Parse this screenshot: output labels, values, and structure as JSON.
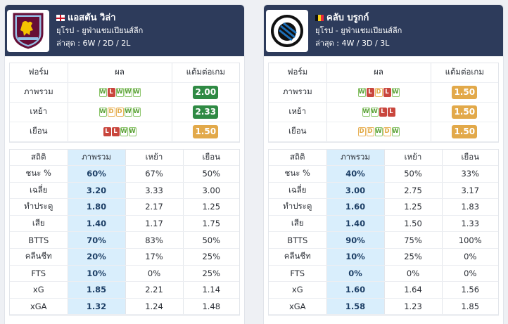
{
  "headers": {
    "form": "ฟอร์ม",
    "result": "ผล",
    "ppg": "แต้มต่อเกม",
    "stat": "สถิติ",
    "overall": "ภาพรวม",
    "home": "เหย้า",
    "away": "เยือน"
  },
  "teams": [
    {
      "name": "แอสตัน วิล่า",
      "flag": "england",
      "competition": "ยุโรป - ยูฟ่าแชมเปียนส์ลีก",
      "recent": "ล่าสุด : 6W / 2D / 2L",
      "form_rows": [
        {
          "label": "ภาพรวม",
          "results": [
            "W",
            "L",
            "W",
            "W",
            "W"
          ],
          "ppg": "2.00",
          "ppg_color": "green"
        },
        {
          "label": "เหย้า",
          "results": [
            "W",
            "D",
            "D",
            "W",
            "W"
          ],
          "ppg": "2.33",
          "ppg_color": "green"
        },
        {
          "label": "เยือน",
          "results": [
            "L",
            "L",
            "W",
            "W"
          ],
          "ppg": "1.50",
          "ppg_color": "orange"
        }
      ],
      "stats": [
        {
          "label": "ชนะ %",
          "overall": "60%",
          "home": "67%",
          "away": "50%"
        },
        {
          "label": "เฉลี่ย",
          "overall": "3.20",
          "home": "3.33",
          "away": "3.00"
        },
        {
          "label": "ทำประตู",
          "overall": "1.80",
          "home": "2.17",
          "away": "1.25"
        },
        {
          "label": "เสีย",
          "overall": "1.40",
          "home": "1.17",
          "away": "1.75"
        },
        {
          "label": "BTTS",
          "overall": "70%",
          "home": "83%",
          "away": "50%"
        },
        {
          "label": "คลีนชีท",
          "overall": "20%",
          "home": "17%",
          "away": "25%"
        },
        {
          "label": "FTS",
          "overall": "10%",
          "home": "0%",
          "away": "25%"
        },
        {
          "label": "xG",
          "overall": "1.85",
          "home": "2.21",
          "away": "1.14"
        },
        {
          "label": "xGA",
          "overall": "1.32",
          "home": "1.24",
          "away": "1.48"
        }
      ]
    },
    {
      "name": "คลับ บรูกก์",
      "flag": "belgium",
      "competition": "ยุโรป - ยูฟ่าแชมเปียนส์ลีก",
      "recent": "ล่าสุด : 4W / 3D / 3L",
      "form_rows": [
        {
          "label": "ภาพรวม",
          "results": [
            "W",
            "L",
            "D",
            "L",
            "W"
          ],
          "ppg": "1.50",
          "ppg_color": "orange"
        },
        {
          "label": "เหย้า",
          "results": [
            "W",
            "W",
            "L",
            "L"
          ],
          "ppg": "1.50",
          "ppg_color": "orange"
        },
        {
          "label": "เยือน",
          "results": [
            "D",
            "D",
            "W",
            "D",
            "W"
          ],
          "ppg": "1.50",
          "ppg_color": "orange"
        }
      ],
      "stats": [
        {
          "label": "ชนะ %",
          "overall": "40%",
          "home": "50%",
          "away": "33%"
        },
        {
          "label": "เฉลี่ย",
          "overall": "3.00",
          "home": "2.75",
          "away": "3.17"
        },
        {
          "label": "ทำประตู",
          "overall": "1.60",
          "home": "1.25",
          "away": "1.83"
        },
        {
          "label": "เสีย",
          "overall": "1.40",
          "home": "1.50",
          "away": "1.33"
        },
        {
          "label": "BTTS",
          "overall": "90%",
          "home": "75%",
          "away": "100%"
        },
        {
          "label": "คลีนชีท",
          "overall": "10%",
          "home": "25%",
          "away": "0%"
        },
        {
          "label": "FTS",
          "overall": "0%",
          "home": "0%",
          "away": "0%"
        },
        {
          "label": "xG",
          "overall": "1.60",
          "home": "1.64",
          "away": "1.56"
        },
        {
          "label": "xGA",
          "overall": "1.58",
          "home": "1.23",
          "away": "1.85"
        }
      ]
    }
  ]
}
